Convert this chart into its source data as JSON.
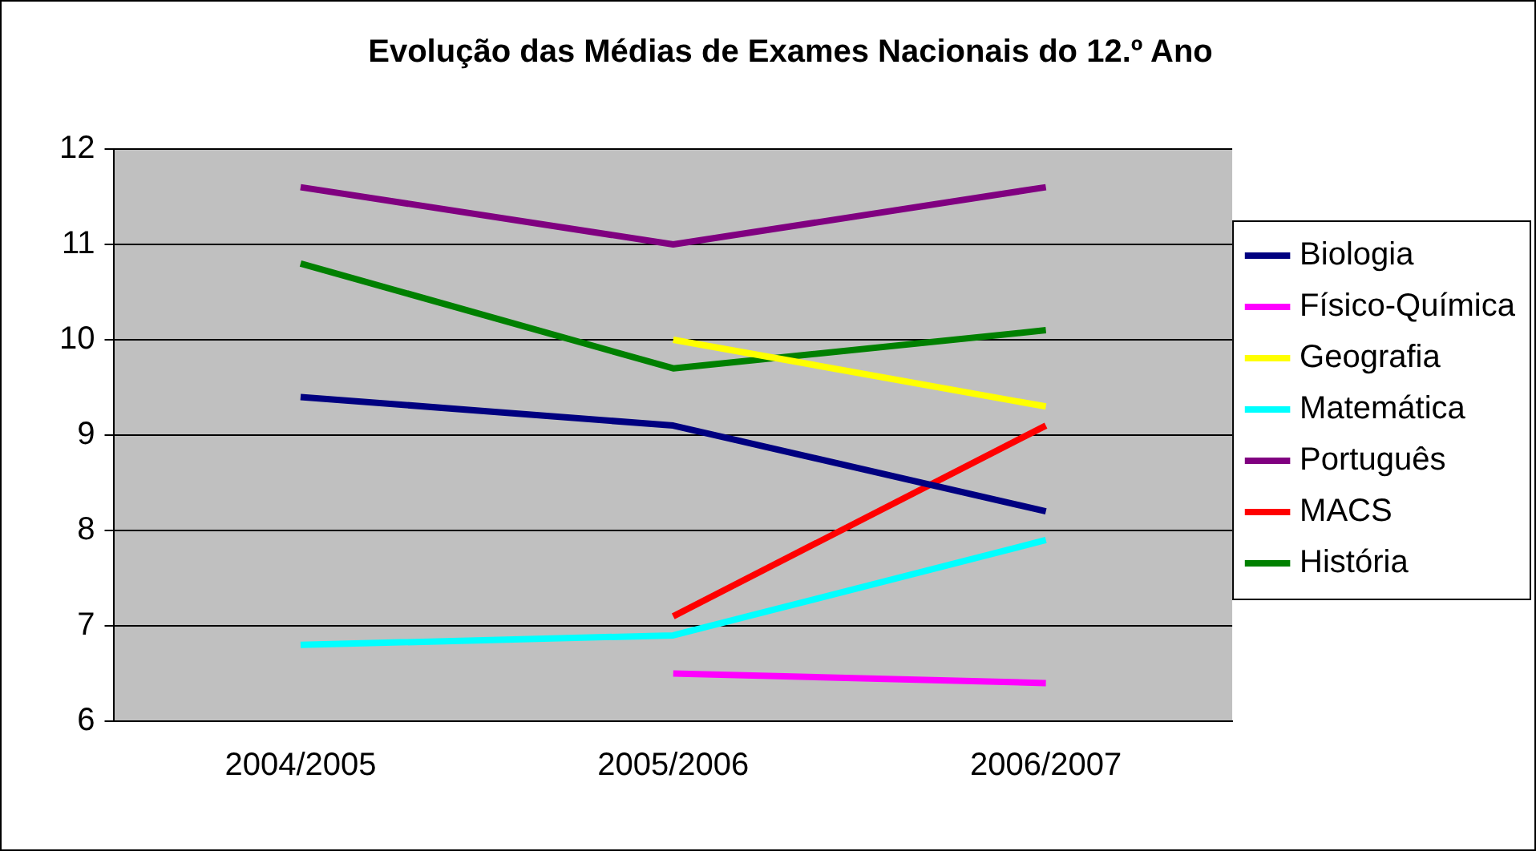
{
  "chart_data": {
    "type": "line",
    "title": "Evolução das Médias de Exames Nacionais do 12.º Ano",
    "categories": [
      "2004/2005",
      "2005/2006",
      "2006/2007"
    ],
    "series": [
      {
        "name": "Biologia",
        "color": "#000080",
        "values": [
          9.4,
          9.1,
          8.2
        ]
      },
      {
        "name": "Físico-Química",
        "color": "#ff00ff",
        "values": [
          null,
          6.5,
          6.4
        ]
      },
      {
        "name": "Geografia",
        "color": "#ffff00",
        "values": [
          null,
          10.0,
          9.3
        ]
      },
      {
        "name": "Matemática",
        "color": "#00ffff",
        "values": [
          6.8,
          6.9,
          7.9
        ]
      },
      {
        "name": "Português",
        "color": "#800080",
        "values": [
          11.6,
          11.0,
          11.6
        ]
      },
      {
        "name": "MACS",
        "color": "#ff0000",
        "values": [
          null,
          7.1,
          9.1
        ]
      },
      {
        "name": "História",
        "color": "#008000",
        "values": [
          10.8,
          9.7,
          10.1
        ]
      }
    ],
    "ylim": [
      6,
      12
    ],
    "yticks": [
      6,
      7,
      8,
      9,
      10,
      11,
      12
    ],
    "grid": "y",
    "legend": "right",
    "marker": "none",
    "line_style": "solid"
  }
}
